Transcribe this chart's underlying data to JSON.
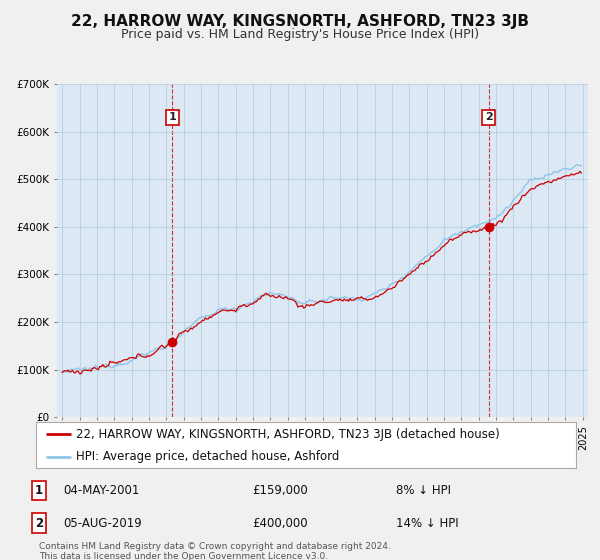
{
  "title": "22, HARROW WAY, KINGSNORTH, ASHFORD, TN23 3JB",
  "subtitle": "Price paid vs. HM Land Registry's House Price Index (HPI)",
  "ylim": [
    0,
    700000
  ],
  "yticks": [
    0,
    100000,
    200000,
    300000,
    400000,
    500000,
    600000,
    700000
  ],
  "ytick_labels": [
    "£0",
    "£100K",
    "£200K",
    "£300K",
    "£400K",
    "£500K",
    "£600K",
    "£700K"
  ],
  "hpi_color": "#90c4e8",
  "price_color": "#cc0000",
  "purchase1_year": 2001.35,
  "purchase1_price": 159000,
  "purchase2_year": 2019.58,
  "purchase2_price": 400000,
  "legend_label_red": "22, HARROW WAY, KINGSNORTH, ASHFORD, TN23 3JB (detached house)",
  "legend_label_blue": "HPI: Average price, detached house, Ashford",
  "annotation1_label": "1",
  "annotation1_date": "04-MAY-2001",
  "annotation1_price": "£159,000",
  "annotation1_hpi": "8% ↓ HPI",
  "annotation2_label": "2",
  "annotation2_date": "05-AUG-2019",
  "annotation2_price": "£400,000",
  "annotation2_hpi": "14% ↓ HPI",
  "footer": "Contains HM Land Registry data © Crown copyright and database right 2024.\nThis data is licensed under the Open Government Licence v3.0.",
  "bg_color": "#f0f0f0",
  "plot_bg_color": "#dce9f5",
  "grid_color": "#b0c8dc",
  "title_fontsize": 11,
  "subtitle_fontsize": 9,
  "tick_fontsize": 7.5,
  "legend_fontsize": 8.5,
  "ann_fontsize": 8.5
}
